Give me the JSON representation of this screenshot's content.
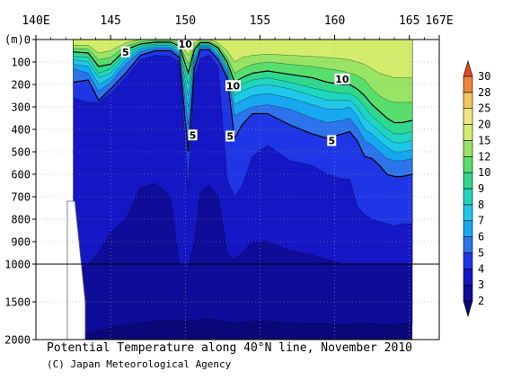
{
  "chart_data": {
    "type": "heatmap",
    "title": "Potential Temperature along 40°N line, November 2010",
    "credit": "(C) Japan Meteorological Agency",
    "x_axis": {
      "range": [
        140,
        167
      ],
      "tick_labels": [
        {
          "value": 140,
          "label": "140E"
        },
        {
          "value": 145,
          "label": "145"
        },
        {
          "value": 150,
          "label": "150"
        },
        {
          "value": 155,
          "label": "155"
        },
        {
          "value": 160,
          "label": "160"
        },
        {
          "value": 165,
          "label": "165"
        },
        {
          "value": 167,
          "label": "167E"
        }
      ]
    },
    "y_axis": {
      "unit_label": "(m)",
      "range": [
        0,
        2000
      ],
      "scale": "linear 0-1000 m (upper panel), compressed 1000-2000 m (lower panel)",
      "tick_labels": [
        {
          "value": 0,
          "label": "0"
        },
        {
          "value": 100,
          "label": "100"
        },
        {
          "value": 200,
          "label": "200"
        },
        {
          "value": 300,
          "label": "300"
        },
        {
          "value": 400,
          "label": "400"
        },
        {
          "value": 500,
          "label": "500"
        },
        {
          "value": 600,
          "label": "600"
        },
        {
          "value": 700,
          "label": "700"
        },
        {
          "value": 800,
          "label": "800"
        },
        {
          "value": 900,
          "label": "900"
        },
        {
          "value": 1000,
          "label": "1000"
        },
        {
          "value": 1500,
          "label": "1500"
        },
        {
          "value": 2000,
          "label": "2000"
        }
      ]
    },
    "data_extent": {
      "lon_start": 142.5,
      "lon_end": 165.2
    },
    "colorbar": {
      "levels": [
        2,
        3,
        4,
        5,
        6,
        7,
        8,
        9,
        10,
        12,
        15,
        20,
        25,
        28,
        30
      ],
      "colors": [
        "#0e0c98",
        "#1516c4",
        "#1f36e6",
        "#2c74ec",
        "#16a8f0",
        "#20c8e8",
        "#1ed6c0",
        "#30d88c",
        "#58de6c",
        "#98e464",
        "#d4ec6c",
        "#f0e680",
        "#f4c860",
        "#f0843c"
      ],
      "low_color": "#0a0878",
      "high_color": "#e8481e"
    },
    "contour_labels": [
      {
        "lon": 150.0,
        "depth": 20,
        "label": "10"
      },
      {
        "lon": 146.0,
        "depth": 55,
        "label": "5"
      },
      {
        "lon": 153.2,
        "depth": 205,
        "label": "10"
      },
      {
        "lon": 160.5,
        "depth": 175,
        "label": "10"
      },
      {
        "lon": 150.5,
        "depth": 425,
        "label": "5"
      },
      {
        "lon": 153.0,
        "depth": 430,
        "label": "5"
      },
      {
        "lon": 159.8,
        "depth": 450,
        "label": "5"
      }
    ],
    "isotherm_depths": {
      "lon": [
        142.5,
        143.5,
        144.2,
        145.0,
        146.0,
        147.0,
        148.0,
        149.0,
        149.6,
        150.2,
        150.6,
        151.0,
        151.6,
        152.2,
        152.8,
        153.3,
        153.8,
        154.5,
        155.5,
        157.0,
        158.5,
        159.5,
        160.5,
        161.0,
        161.5,
        162.0,
        162.5,
        163.0,
        163.5,
        164.0,
        164.5,
        165.2
      ],
      "series": [
        {
          "level": 2,
          "depths": [
            2000,
            1920,
            1880,
            1840,
            1810,
            1780,
            1760,
            1745,
            1745,
            1755,
            1745,
            1735,
            1730,
            1750,
            1770,
            1780,
            1770,
            1760,
            1760,
            1780,
            1790,
            1790,
            1800,
            1800,
            1790,
            1780,
            1790,
            1800,
            1800,
            1800,
            1790,
            1790
          ]
        },
        {
          "level": 3,
          "depths": [
            1100,
            1000,
            950,
            860,
            800,
            660,
            640,
            700,
            1000,
            1050,
            900,
            680,
            650,
            700,
            950,
            980,
            950,
            900,
            900,
            940,
            960,
            980,
            1000,
            1000,
            1000,
            1000,
            1000,
            1000,
            1000,
            1000,
            1000,
            1000
          ]
        },
        {
          "level": 4,
          "depths": [
            260,
            280,
            280,
            240,
            170,
            90,
            70,
            75,
            100,
            660,
            180,
            85,
            70,
            120,
            620,
            700,
            650,
            520,
            470,
            540,
            560,
            600,
            620,
            620,
            740,
            780,
            800,
            810,
            820,
            830,
            820,
            820
          ]
        },
        {
          "level": 5,
          "depths": [
            190,
            180,
            270,
            220,
            150,
            70,
            50,
            50,
            80,
            500,
            130,
            45,
            45,
            90,
            170,
            440,
            380,
            330,
            330,
            380,
            420,
            440,
            420,
            410,
            450,
            520,
            530,
            560,
            600,
            610,
            610,
            600
          ]
        },
        {
          "level": 6,
          "depths": [
            130,
            150,
            230,
            190,
            110,
            55,
            40,
            40,
            65,
            380,
            100,
            35,
            35,
            75,
            150,
            340,
            320,
            300,
            290,
            310,
            350,
            370,
            360,
            350,
            390,
            450,
            470,
            500,
            530,
            540,
            540,
            530
          ]
        },
        {
          "level": 7,
          "depths": [
            110,
            120,
            200,
            170,
            90,
            45,
            32,
            32,
            55,
            300,
            85,
            30,
            30,
            65,
            135,
            290,
            270,
            250,
            240,
            260,
            290,
            310,
            310,
            300,
            340,
            400,
            420,
            450,
            480,
            500,
            500,
            490
          ]
        },
        {
          "level": 8,
          "depths": [
            90,
            100,
            170,
            150,
            75,
            38,
            26,
            26,
            45,
            250,
            70,
            25,
            25,
            55,
            125,
            250,
            230,
            210,
            200,
            220,
            250,
            270,
            270,
            270,
            300,
            350,
            380,
            410,
            440,
            460,
            460,
            450
          ]
        },
        {
          "level": 9,
          "depths": [
            75,
            80,
            150,
            130,
            60,
            30,
            20,
            20,
            38,
            200,
            58,
            20,
            20,
            48,
            115,
            220,
            200,
            180,
            170,
            190,
            215,
            230,
            240,
            240,
            260,
            300,
            340,
            370,
            400,
            420,
            420,
            410
          ]
        },
        {
          "level": 10,
          "depths": [
            55,
            60,
            120,
            110,
            45,
            20,
            12,
            12,
            28,
            150,
            45,
            14,
            14,
            38,
            100,
            190,
            170,
            150,
            140,
            155,
            170,
            190,
            200,
            200,
            220,
            250,
            290,
            320,
            350,
            370,
            370,
            360
          ]
        },
        {
          "level": 12,
          "depths": [
            40,
            42,
            90,
            80,
            30,
            10,
            5,
            5,
            18,
            110,
            30,
            8,
            8,
            28,
            80,
            150,
            130,
            110,
            100,
            110,
            120,
            130,
            140,
            150,
            160,
            180,
            220,
            250,
            270,
            280,
            280,
            280
          ]
        },
        {
          "level": 15,
          "depths": [
            25,
            25,
            60,
            50,
            15,
            0,
            0,
            0,
            6,
            70,
            15,
            0,
            0,
            15,
            50,
            100,
            80,
            70,
            65,
            70,
            75,
            80,
            85,
            90,
            100,
            110,
            130,
            150,
            160,
            170,
            170,
            170
          ]
        }
      ]
    }
  }
}
